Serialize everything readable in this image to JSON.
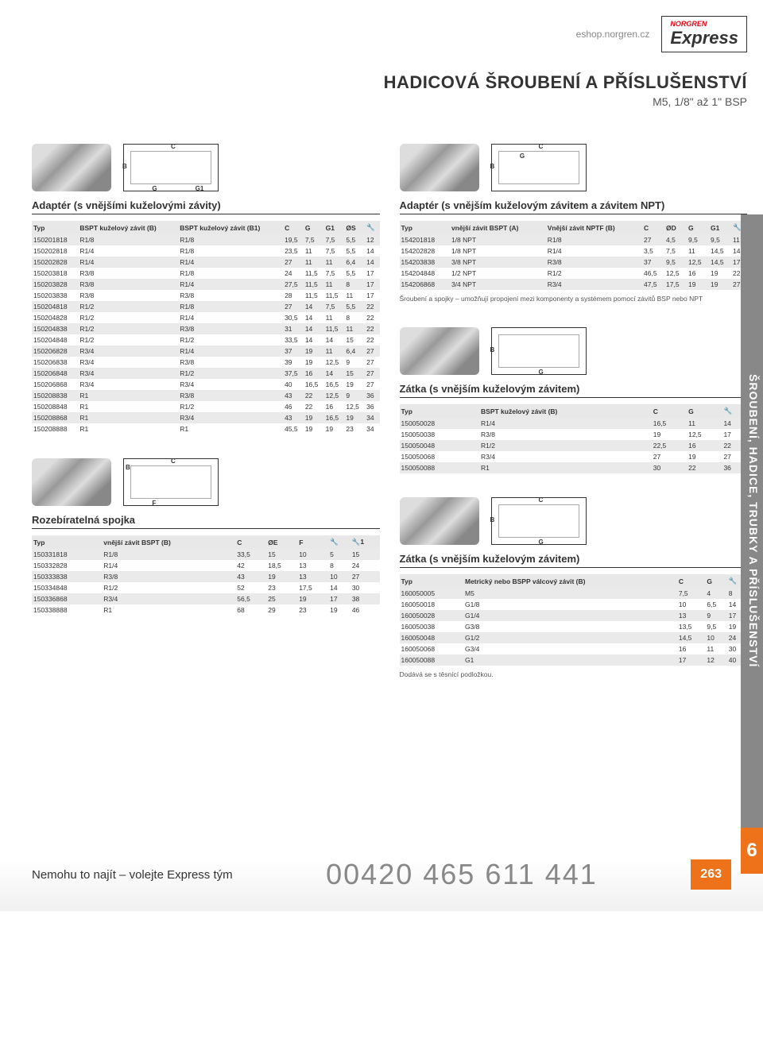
{
  "header": {
    "url": "eshop.norgren.cz",
    "brand": "NORGREN",
    "logo": "Express"
  },
  "title": {
    "main": "HADICOVÁ ŠROUBENÍ A PŘÍSLUŠENSTVÍ",
    "sub": "M5, 1/8\" až 1\" BSP"
  },
  "t1": {
    "title": "Adaptér (s vnějšími kuželovými závity)",
    "cols": [
      "Typ",
      "BSPT kuželový závit (B)",
      "BSPT kuželový závit (B1)",
      "C",
      "G",
      "G1",
      "ØS",
      "🔧"
    ],
    "rows": [
      [
        "150201818",
        "R1/8",
        "R1/8",
        "19,5",
        "7,5",
        "7,5",
        "5,5",
        "12"
      ],
      [
        "150202818",
        "R1/4",
        "R1/8",
        "23,5",
        "11",
        "7,5",
        "5,5",
        "14"
      ],
      [
        "150202828",
        "R1/4",
        "R1/4",
        "27",
        "11",
        "11",
        "6,4",
        "14"
      ],
      [
        "150203818",
        "R3/8",
        "R1/8",
        "24",
        "11,5",
        "7,5",
        "5,5",
        "17"
      ],
      [
        "150203828",
        "R3/8",
        "R1/4",
        "27,5",
        "11,5",
        "11",
        "8",
        "17"
      ],
      [
        "150203838",
        "R3/8",
        "R3/8",
        "28",
        "11,5",
        "11,5",
        "11",
        "17"
      ],
      [
        "150204818",
        "R1/2",
        "R1/8",
        "27",
        "14",
        "7,5",
        "5,5",
        "22"
      ],
      [
        "150204828",
        "R1/2",
        "R1/4",
        "30,5",
        "14",
        "11",
        "8",
        "22"
      ],
      [
        "150204838",
        "R1/2",
        "R3/8",
        "31",
        "14",
        "11,5",
        "11",
        "22"
      ],
      [
        "150204848",
        "R1/2",
        "R1/2",
        "33,5",
        "14",
        "14",
        "15",
        "22"
      ],
      [
        "150206828",
        "R3/4",
        "R1/4",
        "37",
        "19",
        "11",
        "6,4",
        "27"
      ],
      [
        "150206838",
        "R3/4",
        "R3/8",
        "39",
        "19",
        "12,5",
        "9",
        "27"
      ],
      [
        "150206848",
        "R3/4",
        "R1/2",
        "37,5",
        "16",
        "14",
        "15",
        "27"
      ],
      [
        "150206868",
        "R3/4",
        "R3/4",
        "40",
        "16,5",
        "16,5",
        "19",
        "27"
      ],
      [
        "150208838",
        "R1",
        "R3/8",
        "43",
        "22",
        "12,5",
        "9",
        "36"
      ],
      [
        "150208848",
        "R1",
        "R1/2",
        "46",
        "22",
        "16",
        "12,5",
        "36"
      ],
      [
        "150208868",
        "R1",
        "R3/4",
        "43",
        "19",
        "16,5",
        "19",
        "34"
      ],
      [
        "150208888",
        "R1",
        "R1",
        "45,5",
        "19",
        "19",
        "23",
        "34"
      ]
    ]
  },
  "t2": {
    "title": "Rozebíratelná spojka",
    "cols": [
      "Typ",
      "vnější závit BSPT (B)",
      "C",
      "ØE",
      "F",
      "🔧",
      "🔧1"
    ],
    "rows": [
      [
        "150331818",
        "R1/8",
        "33,5",
        "15",
        "10",
        "5",
        "15"
      ],
      [
        "150332828",
        "R1/4",
        "42",
        "18,5",
        "13",
        "8",
        "24"
      ],
      [
        "150333838",
        "R3/8",
        "43",
        "19",
        "13",
        "10",
        "27"
      ],
      [
        "150334848",
        "R1/2",
        "52",
        "23",
        "17,5",
        "14",
        "30"
      ],
      [
        "150336868",
        "R3/4",
        "56,5",
        "25",
        "19",
        "17",
        "38"
      ],
      [
        "150338888",
        "R1",
        "68",
        "29",
        "23",
        "19",
        "46"
      ]
    ]
  },
  "t3": {
    "title": "Adaptér (s vnějším kuželovým závitem a závitem NPT)",
    "cols": [
      "Typ",
      "vnější závit BSPT (A)",
      "Vnější závit NPTF (B)",
      "C",
      "ØD",
      "G",
      "G1",
      "🔧"
    ],
    "rows": [
      [
        "154201818",
        "1/8 NPT",
        "R1/8",
        "27",
        "4,5",
        "9,5",
        "9,5",
        "11"
      ],
      [
        "154202828",
        "1/8 NPT",
        "R1/4",
        "3,5",
        "7,5",
        "11",
        "14,5",
        "14"
      ],
      [
        "154203838",
        "3/8 NPT",
        "R3/8",
        "37",
        "9,5",
        "12,5",
        "14,5",
        "17"
      ],
      [
        "154204848",
        "1/2 NPT",
        "R1/2",
        "46,5",
        "12,5",
        "16",
        "19",
        "22"
      ],
      [
        "154206868",
        "3/4 NPT",
        "R3/4",
        "47,5",
        "17,5",
        "19",
        "19",
        "27"
      ]
    ],
    "note": "Šroubení a spojky – umožňují propojení mezi komponenty a systémem pomocí závitů BSP nebo NPT"
  },
  "t4": {
    "title": "Zátka (s vnějším kuželovým závitem)",
    "cols": [
      "Typ",
      "BSPT kuželový závit (B)",
      "C",
      "G",
      "🔧"
    ],
    "rows": [
      [
        "150050028",
        "R1/4",
        "16,5",
        "11",
        "14"
      ],
      [
        "150050038",
        "R3/8",
        "19",
        "12,5",
        "17"
      ],
      [
        "150050048",
        "R1/2",
        "22,5",
        "16",
        "22"
      ],
      [
        "150050068",
        "R3/4",
        "27",
        "19",
        "27"
      ],
      [
        "150050088",
        "R1",
        "30",
        "22",
        "36"
      ]
    ]
  },
  "t5": {
    "title": "Zátka (s vnějším kuželovým závitem)",
    "cols": [
      "Typ",
      "Metrický nebo BSPP válcový závit (B)",
      "C",
      "G",
      "🔧"
    ],
    "rows": [
      [
        "160050005",
        "M5",
        "7,5",
        "4",
        "8"
      ],
      [
        "160050018",
        "G1/8",
        "10",
        "6,5",
        "14"
      ],
      [
        "160050028",
        "G1/4",
        "13",
        "9",
        "17"
      ],
      [
        "160050038",
        "G3/8",
        "13,5",
        "9,5",
        "19"
      ],
      [
        "160050048",
        "G1/2",
        "14,5",
        "10",
        "24"
      ],
      [
        "160050068",
        "G3/4",
        "16",
        "11",
        "30"
      ],
      [
        "160050088",
        "G1",
        "17",
        "12",
        "40"
      ]
    ],
    "note": "Dodává se s těsnící podložkou."
  },
  "sidebar": {
    "text": "ŠROUBENÍ, HADICE, TRUBKY A PŘÍSLUŠENSTVÍ",
    "num": "6"
  },
  "footer": {
    "left": "Nemohu to najít – volejte Express tým",
    "phone": "00420 465 611 441",
    "page": "263"
  }
}
